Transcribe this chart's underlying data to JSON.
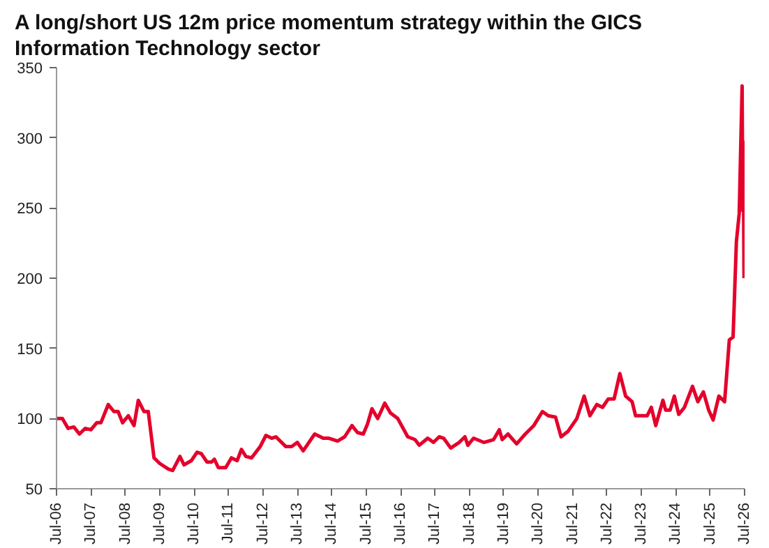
{
  "chart_data": {
    "type": "line",
    "title": "A long/short US 12m price momentum strategy within the GICS Information Technology sector",
    "x": [
      "2006-07-01",
      "2006-09-01",
      "2006-11-01",
      "2007-01-01",
      "2007-03-01",
      "2007-05-01",
      "2007-07-01",
      "2007-09-01",
      "2007-10-15",
      "2008-01-01",
      "2008-03-01",
      "2008-04-15",
      "2008-06-01",
      "2008-08-01",
      "2008-10-01",
      "2008-11-15",
      "2009-01-15",
      "2009-03-01",
      "2009-05-01",
      "2009-07-01",
      "2009-10-01",
      "2009-11-15",
      "2010-02-01",
      "2010-03-15",
      "2010-06-01",
      "2010-08-01",
      "2010-09-15",
      "2010-11-15",
      "2011-01-01",
      "2011-02-01",
      "2011-03-15",
      "2011-06-01",
      "2011-08-01",
      "2011-10-01",
      "2011-11-15",
      "2012-01-01",
      "2012-03-01",
      "2012-06-01",
      "2012-08-01",
      "2012-10-01",
      "2012-11-15",
      "2013-03-01",
      "2013-05-01",
      "2013-07-01",
      "2013-09-01",
      "2014-01-01",
      "2014-04-01",
      "2014-06-01",
      "2014-09-01",
      "2014-11-15",
      "2015-02-01",
      "2015-04-01",
      "2015-06-01",
      "2015-07-15",
      "2015-09-01",
      "2015-11-01",
      "2016-01-15",
      "2016-03-15",
      "2016-06-01",
      "2016-09-15",
      "2016-12-01",
      "2017-01-15",
      "2017-04-15",
      "2017-06-15",
      "2017-08-15",
      "2017-10-01",
      "2017-12-15",
      "2018-03-15",
      "2018-05-15",
      "2018-06-15",
      "2018-08-15",
      "2018-12-01",
      "2019-03-15",
      "2019-05-15",
      "2019-06-15",
      "2019-08-15",
      "2019-11-15",
      "2020-02-15",
      "2020-05-15",
      "2020-08-15",
      "2020-10-15",
      "2021-01-01",
      "2021-03-01",
      "2021-05-15",
      "2021-08-15",
      "2021-11-01",
      "2022-01-01",
      "2022-03-15",
      "2022-05-15",
      "2022-07-15",
      "2022-09-15",
      "2022-11-15",
      "2023-01-15",
      "2023-03-25",
      "2023-05-01",
      "2023-09-01",
      "2023-10-15",
      "2023-12-01",
      "2024-02-15",
      "2024-03-15",
      "2024-05-01",
      "2024-06-15",
      "2024-08-01",
      "2024-10-01",
      "2024-12-25",
      "2025-02-20",
      "2025-04-20",
      "2025-06-15",
      "2025-08-01",
      "2025-10-01",
      "2025-12-01",
      "2026-01-20",
      "2026-03-01",
      "2026-04-05",
      "2026-05-05",
      "2026-06-05",
      "2026-06-12",
      "2026-06-17",
      "2026-06-25"
    ],
    "series": [
      {
        "color": "#e4002b",
        "values": [
          100,
          100,
          93,
          94,
          89,
          93,
          92,
          97,
          97,
          110,
          105,
          105,
          97,
          102,
          95,
          113,
          105,
          105,
          72,
          68,
          64,
          63,
          73,
          67,
          70,
          76,
          75,
          69,
          69,
          71,
          65,
          65,
          72,
          70,
          78,
          73,
          72,
          80,
          88,
          86,
          87,
          80,
          80,
          83,
          77,
          89,
          86,
          86,
          84,
          87,
          95,
          90,
          89,
          96,
          107,
          100,
          111,
          104,
          100,
          87,
          85,
          81,
          86,
          83,
          87,
          86,
          79,
          83,
          87,
          81,
          86,
          83,
          85,
          92,
          85,
          89,
          82,
          89,
          95,
          105,
          102,
          101,
          87,
          91,
          100,
          116,
          102,
          110,
          108,
          114,
          114,
          132,
          116,
          112,
          102,
          102,
          108,
          95,
          113,
          106,
          106,
          116,
          103,
          108,
          123,
          112,
          119,
          106,
          99,
          116,
          112,
          156,
          158,
          226,
          246,
          337,
          248,
          297,
          200
        ]
      }
    ],
    "xlim": [
      "2006-07-01",
      "2026-07-01"
    ],
    "xticks": [
      {
        "value": "2006-07-01",
        "label": "Jul-06"
      },
      {
        "value": "2007-07-01",
        "label": "Jul-07"
      },
      {
        "value": "2008-07-01",
        "label": "Jul-08"
      },
      {
        "value": "2009-07-01",
        "label": "Jul-09"
      },
      {
        "value": "2010-07-01",
        "label": "Jul-10"
      },
      {
        "value": "2011-07-01",
        "label": "Jul-11"
      },
      {
        "value": "2012-07-01",
        "label": "Jul-12"
      },
      {
        "value": "2013-07-01",
        "label": "Jul-13"
      },
      {
        "value": "2014-07-01",
        "label": "Jul-14"
      },
      {
        "value": "2015-07-01",
        "label": "Jul-15"
      },
      {
        "value": "2016-07-01",
        "label": "Jul-16"
      },
      {
        "value": "2017-07-01",
        "label": "Jul-17"
      },
      {
        "value": "2018-07-01",
        "label": "Jul-18"
      },
      {
        "value": "2019-07-01",
        "label": "Jul-19"
      },
      {
        "value": "2020-07-01",
        "label": "Jul-20"
      },
      {
        "value": "2021-07-01",
        "label": "Jul-21"
      },
      {
        "value": "2022-07-01",
        "label": "Jul-22"
      },
      {
        "value": "2023-07-01",
        "label": "Jul-23"
      },
      {
        "value": "2024-07-01",
        "label": "Jul-24"
      },
      {
        "value": "2025-07-01",
        "label": "Jul-25"
      },
      {
        "value": "2026-07-01",
        "label": "Jul-26"
      }
    ],
    "ylim": [
      50,
      350
    ],
    "yticks": [
      50,
      100,
      150,
      200,
      250,
      300,
      350
    ],
    "line_style": "solid"
  }
}
